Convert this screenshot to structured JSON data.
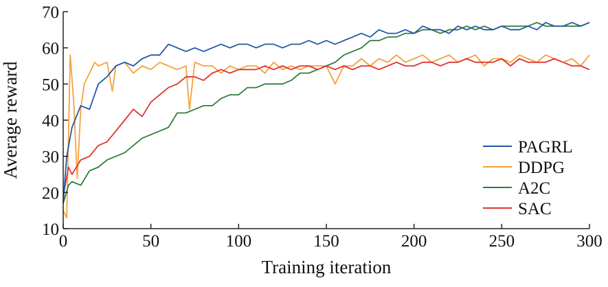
{
  "chart_data": {
    "type": "line",
    "title": "",
    "xlabel": "Training iteration",
    "ylabel": "Average reward",
    "xlim": [
      0,
      300
    ],
    "ylim": [
      10,
      70
    ],
    "xticks": [
      0,
      50,
      100,
      150,
      200,
      250,
      300
    ],
    "yticks": [
      10,
      20,
      30,
      40,
      50,
      60,
      70
    ],
    "grid": false,
    "legend_position": "right",
    "series": [
      {
        "name": "PAGRL",
        "color": "#2356a5",
        "x": [
          0,
          2,
          5,
          10,
          15,
          20,
          25,
          30,
          35,
          40,
          45,
          50,
          55,
          60,
          65,
          70,
          75,
          80,
          85,
          90,
          95,
          100,
          105,
          110,
          115,
          120,
          125,
          130,
          135,
          140,
          145,
          150,
          155,
          160,
          165,
          170,
          175,
          180,
          185,
          190,
          195,
          200,
          205,
          210,
          215,
          220,
          225,
          230,
          235,
          240,
          245,
          250,
          255,
          260,
          265,
          270,
          275,
          280,
          285,
          290,
          295,
          300
        ],
        "y": [
          17,
          30,
          38,
          44,
          43,
          50,
          52,
          55,
          56,
          55,
          57,
          58,
          58,
          61,
          60,
          59,
          60,
          59,
          60,
          61,
          60,
          61,
          61,
          60,
          61,
          61,
          60,
          61,
          61,
          62,
          61,
          62,
          61,
          62,
          63,
          64,
          63,
          65,
          64,
          64,
          65,
          64,
          66,
          65,
          65,
          64,
          66,
          65,
          66,
          65,
          65,
          66,
          65,
          65,
          66,
          65,
          67,
          66,
          66,
          67,
          66,
          67
        ]
      },
      {
        "name": "DDPG",
        "color": "#f4a23a",
        "x": [
          0,
          2,
          4,
          6,
          8,
          10,
          12,
          15,
          18,
          20,
          25,
          28,
          30,
          35,
          40,
          45,
          50,
          55,
          60,
          65,
          70,
          72,
          75,
          80,
          85,
          90,
          95,
          100,
          105,
          110,
          115,
          120,
          125,
          130,
          135,
          140,
          145,
          150,
          155,
          160,
          165,
          170,
          175,
          180,
          185,
          190,
          195,
          200,
          205,
          210,
          215,
          220,
          225,
          230,
          235,
          240,
          245,
          250,
          255,
          260,
          265,
          270,
          275,
          280,
          285,
          290,
          295,
          300
        ],
        "y": [
          15,
          13,
          58,
          45,
          24,
          43,
          50,
          53,
          56,
          55,
          56,
          48,
          55,
          56,
          53,
          55,
          54,
          56,
          55,
          54,
          55,
          43,
          56,
          55,
          55,
          53,
          55,
          54,
          55,
          55,
          53,
          56,
          54,
          55,
          54,
          55,
          55,
          55,
          50,
          55,
          55,
          57,
          55,
          57,
          56,
          58,
          56,
          57,
          58,
          56,
          57,
          58,
          56,
          57,
          58,
          55,
          57,
          57,
          56,
          58,
          57,
          56,
          58,
          57,
          56,
          57,
          55,
          58
        ]
      },
      {
        "name": "A2C",
        "color": "#2f7d3b",
        "x": [
          0,
          3,
          5,
          10,
          15,
          20,
          25,
          30,
          35,
          40,
          45,
          50,
          55,
          60,
          65,
          70,
          75,
          80,
          85,
          90,
          95,
          100,
          105,
          110,
          115,
          120,
          125,
          130,
          135,
          140,
          145,
          150,
          155,
          160,
          165,
          170,
          175,
          180,
          185,
          190,
          195,
          200,
          205,
          210,
          215,
          220,
          225,
          230,
          235,
          240,
          245,
          250,
          255,
          260,
          265,
          270,
          275,
          280,
          285,
          290,
          295,
          300
        ],
        "y": [
          17,
          22,
          23,
          22,
          26,
          27,
          29,
          30,
          31,
          33,
          35,
          36,
          37,
          38,
          42,
          42,
          43,
          44,
          44,
          46,
          47,
          47,
          49,
          49,
          50,
          50,
          50,
          51,
          53,
          53,
          54,
          55,
          56,
          58,
          59,
          60,
          62,
          62,
          63,
          63,
          64,
          64,
          65,
          65,
          64,
          65,
          65,
          66,
          65,
          66,
          65,
          66,
          66,
          66,
          66,
          67,
          66,
          66,
          66,
          66,
          66,
          67
        ]
      },
      {
        "name": "SAC",
        "color": "#e1322f",
        "x": [
          0,
          3,
          5,
          10,
          15,
          20,
          25,
          30,
          35,
          40,
          45,
          50,
          55,
          60,
          65,
          70,
          75,
          80,
          85,
          90,
          95,
          100,
          105,
          110,
          115,
          120,
          125,
          130,
          135,
          140,
          145,
          150,
          155,
          160,
          165,
          170,
          175,
          180,
          185,
          190,
          195,
          200,
          205,
          210,
          215,
          220,
          225,
          230,
          235,
          240,
          245,
          250,
          255,
          260,
          265,
          270,
          275,
          280,
          285,
          290,
          295,
          300
        ],
        "y": [
          19,
          27,
          25,
          29,
          30,
          33,
          34,
          37,
          40,
          43,
          41,
          45,
          47,
          49,
          50,
          52,
          52,
          51,
          53,
          54,
          53,
          54,
          54,
          54,
          55,
          54,
          55,
          54,
          55,
          55,
          54,
          55,
          54,
          55,
          54,
          55,
          55,
          54,
          55,
          56,
          55,
          55,
          56,
          56,
          55,
          56,
          56,
          57,
          56,
          56,
          56,
          57,
          55,
          57,
          56,
          56,
          56,
          57,
          56,
          55,
          55,
          54
        ]
      }
    ]
  }
}
